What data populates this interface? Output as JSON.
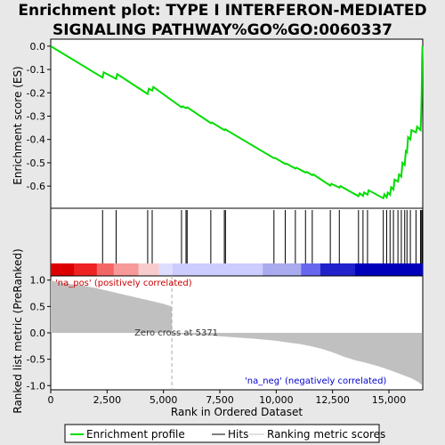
{
  "title_lines": [
    "Enrichment plot: TYPE I INTERFERON-MEDIATED",
    "SIGNALING PATHWAY%GO%GO:0060337"
  ],
  "colors": {
    "enrichment_line": "#00dd00",
    "hit_line": "#000000",
    "metric_fill": "#c0c0c0",
    "zero_cross_line": "#aaaaaa",
    "pos_label": "#cc0000",
    "neg_label": "#0000cc",
    "background": "#e8e8e8"
  },
  "chart_data": [
    {
      "type": "line",
      "name": "enrichment-score-panel",
      "ylabel": "Enrichment score (ES)",
      "xlim": [
        0,
        16500
      ],
      "ylim": [
        -0.695,
        0.03
      ],
      "y_ticks": [
        0.0,
        -0.1,
        -0.2,
        -0.3,
        -0.4,
        -0.5,
        -0.6
      ],
      "y_tick_labels": [
        "0.0",
        "-0.1",
        "-0.2",
        "-0.3",
        "-0.4",
        "-0.5",
        "-0.6"
      ],
      "grid": false,
      "series": [
        {
          "name": "Enrichment profile",
          "x": [
            0,
            2300,
            2350,
            2900,
            2950,
            4300,
            4350,
            4500,
            4550,
            5800,
            5850,
            6000,
            6050,
            7100,
            7150,
            7700,
            7750,
            7800,
            9900,
            9950,
            10400,
            10450,
            10850,
            10900,
            11300,
            11350,
            11600,
            11650,
            12400,
            12450,
            12800,
            12850,
            13650,
            13700,
            13850,
            13900,
            14050,
            14100,
            14750,
            14800,
            14900,
            14950,
            15050,
            15100,
            15200,
            15250,
            15400,
            15450,
            15550,
            15600,
            15700,
            15750,
            15800,
            15850,
            15950,
            16000,
            16200,
            16250,
            16400,
            16430,
            16450,
            16460,
            16470,
            16480,
            16490
          ],
          "y": [
            0.0,
            -0.135,
            -0.112,
            -0.14,
            -0.12,
            -0.205,
            -0.182,
            -0.19,
            -0.175,
            -0.262,
            -0.258,
            -0.266,
            -0.262,
            -0.33,
            -0.327,
            -0.36,
            -0.356,
            -0.36,
            -0.48,
            -0.479,
            -0.505,
            -0.503,
            -0.525,
            -0.521,
            -0.542,
            -0.539,
            -0.553,
            -0.55,
            -0.598,
            -0.59,
            -0.607,
            -0.6,
            -0.643,
            -0.631,
            -0.642,
            -0.627,
            -0.637,
            -0.618,
            -0.652,
            -0.635,
            -0.648,
            -0.628,
            -0.637,
            -0.605,
            -0.615,
            -0.572,
            -0.58,
            -0.55,
            -0.56,
            -0.5,
            -0.51,
            -0.45,
            -0.455,
            -0.39,
            -0.4,
            -0.36,
            -0.37,
            -0.345,
            -0.36,
            -0.3,
            -0.22,
            -0.14,
            -0.07,
            -0.02,
            0.0
          ]
        }
      ]
    },
    {
      "type": "rug",
      "name": "hits-panel",
      "hits": [
        2300,
        2900,
        4300,
        4500,
        5800,
        6000,
        6050,
        7100,
        7700,
        7750,
        9900,
        10400,
        10850,
        11300,
        11600,
        12400,
        12800,
        13650,
        13850,
        14050,
        14750,
        14900,
        15050,
        15200,
        15400,
        15550,
        15700,
        15800,
        15950,
        16200,
        16400,
        16450,
        16480
      ],
      "gradient_colors": [
        "#dd0000",
        "#ee2222",
        "#f46666",
        "#f79999",
        "#f8cccc",
        "#ddddff",
        "#ccccff",
        "#aaaaee",
        "#6666ee",
        "#2222cc",
        "#0000bb"
      ],
      "gradient_bands": [
        0,
        1050,
        2050,
        2800,
        3900,
        4800,
        5400,
        9400,
        11100,
        11950,
        13500,
        16500
      ]
    },
    {
      "type": "area",
      "name": "ranked-list-panel",
      "ylabel": "Ranked list metric (PreRanked)",
      "xlabel": "Rank in Ordered Dataset",
      "xlim": [
        0,
        16500
      ],
      "ylim": [
        -1.08,
        1.08
      ],
      "x_ticks": [
        0,
        2500,
        5000,
        7500,
        10000,
        12500,
        15000
      ],
      "x_tick_labels": [
        "0",
        "2,500",
        "5,000",
        "7,500",
        "10,000",
        "12,500",
        "15,000"
      ],
      "y_ticks": [
        1.0,
        0.5,
        0.0,
        -0.5,
        -1.0
      ],
      "y_tick_labels": [
        "1.0",
        "0.5",
        "0.0",
        "-0.5",
        "-1.0"
      ],
      "x": [
        0,
        200,
        500,
        1000,
        1500,
        2000,
        2500,
        3000,
        3500,
        4000,
        4500,
        5000,
        5370,
        5380,
        6000,
        7000,
        8000,
        9000,
        10000,
        10500,
        11000,
        11500,
        12000,
        12500,
        13000,
        13500,
        14000,
        14500,
        15000,
        15500,
        16000,
        16300,
        16490
      ],
      "values": [
        1.0,
        0.97,
        0.95,
        0.92,
        0.89,
        0.85,
        0.8,
        0.75,
        0.7,
        0.65,
        0.6,
        0.55,
        0.5,
        -0.02,
        -0.03,
        -0.05,
        -0.08,
        -0.11,
        -0.15,
        -0.18,
        -0.21,
        -0.25,
        -0.3,
        -0.37,
        -0.45,
        -0.52,
        -0.57,
        -0.63,
        -0.7,
        -0.78,
        -0.86,
        -0.93,
        -1.0
      ],
      "zero_cross": 5371,
      "annotations": {
        "zero_cross": "Zero cross at 5371",
        "pos": "'na_pos' (positively correlated)",
        "neg": "'na_neg' (negatively correlated)"
      }
    }
  ],
  "legend": [
    {
      "label": "Enrichment profile",
      "color": "#00dd00"
    },
    {
      "label": "Hits",
      "color": "#000000"
    },
    {
      "label": "Ranking metric scores",
      "color": "#c0c0c0"
    }
  ]
}
